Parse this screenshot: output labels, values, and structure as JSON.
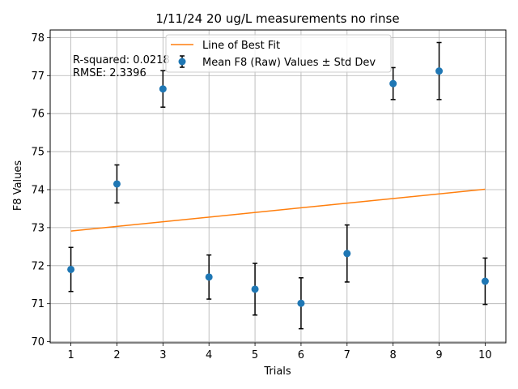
{
  "chart_data": {
    "type": "scatter",
    "title": "1/11/24 20 ug/L measurements no rinse",
    "xlabel": "Trials",
    "ylabel": "F8 Values",
    "xlim": [
      0.55,
      10.45
    ],
    "ylim": [
      69.97,
      78.2
    ],
    "xticks": [
      1,
      2,
      3,
      4,
      5,
      6,
      7,
      8,
      9,
      10
    ],
    "yticks": [
      70,
      71,
      72,
      73,
      74,
      75,
      76,
      77,
      78
    ],
    "grid": true,
    "legend_position": "top-center",
    "series": [
      {
        "name": "Mean F8 (Raw) Values ± Std Dev",
        "kind": "errorbar",
        "color": "#1f77b4",
        "x": [
          1,
          2,
          3,
          4,
          5,
          6,
          7,
          8,
          9,
          10
        ],
        "y": [
          71.9,
          74.15,
          76.65,
          71.7,
          71.38,
          71.01,
          72.32,
          76.79,
          77.12,
          71.59
        ],
        "err": [
          0.58,
          0.5,
          0.48,
          0.58,
          0.68,
          0.67,
          0.75,
          0.42,
          0.75,
          0.61
        ]
      },
      {
        "name": "Line of Best Fit",
        "kind": "line",
        "color": "#ff7f0e",
        "x": [
          1,
          10
        ],
        "y": [
          72.91,
          74.01
        ]
      }
    ],
    "annotations": [
      "R-squared: 0.0218",
      "RMSE: 2.3396"
    ]
  }
}
